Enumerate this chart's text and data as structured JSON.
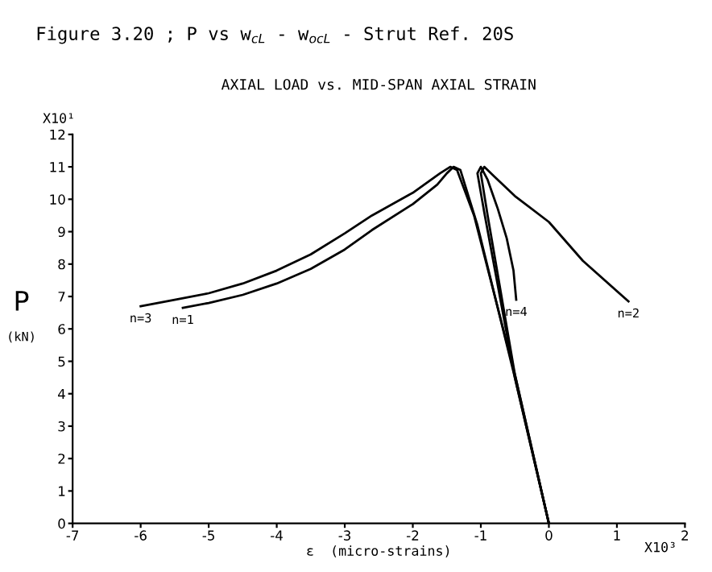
{
  "chart_data": {
    "type": "line",
    "title": "AXIAL LOAD vs. MID-SPAN AXIAL STRAIN",
    "xlabel": "ε  (micro-strains)",
    "ylabel": "P\n(kN)",
    "annotations": [
      "Figure 3.20 ; P vs w$_{cL}$ - w$_{ocL}$ - Strut Ref. 20S",
      "X10¹",
      "X10³"
    ],
    "xlim": [
      -7,
      2
    ],
    "xticks": [
      -7,
      -6,
      -5,
      -4,
      -3,
      -2,
      -1,
      0,
      1,
      2
    ],
    "ylim": [
      0,
      12
    ],
    "yticks": [
      0,
      1,
      2,
      3,
      4,
      5,
      6,
      7,
      8,
      9,
      10,
      11,
      12
    ],
    "grid": false,
    "legend": false,
    "marker": "none",
    "line_style": "solid",
    "series": [
      {
        "name": "n=3",
        "color": "#000000",
        "x": [
          0,
          -0.5,
          -1.1,
          -1.35,
          -1.45,
          -1.6,
          -2,
          -2.6,
          -3,
          -3.5,
          -4,
          -4.5,
          -5,
          -5.5,
          -6
        ],
        "values": [
          0,
          4.6,
          9.5,
          10.9,
          11.0,
          10.8,
          10.2,
          9.5,
          8.95,
          8.3,
          7.8,
          7.4,
          7.1,
          6.9,
          6.7
        ]
      },
      {
        "name": "n=1",
        "color": "#000000",
        "x": [
          0,
          -0.5,
          -1.05,
          -1.3,
          -1.4,
          -1.5,
          -1.64,
          -2,
          -2.6,
          -3,
          -3.5,
          -4,
          -4.5,
          -5,
          -5.38
        ],
        "values": [
          0,
          4.5,
          9.2,
          10.9,
          11.0,
          10.8,
          10.45,
          9.85,
          9.05,
          8.45,
          7.85,
          7.4,
          7.05,
          6.8,
          6.65
        ]
      },
      {
        "name": "n=4",
        "color": "#000000",
        "x": [
          0,
          -0.5,
          -0.95,
          -1.05,
          -1.0,
          -0.9,
          -0.75,
          -0.62,
          -0.52,
          -0.48
        ],
        "values": [
          0,
          4.5,
          9.6,
          10.8,
          11.0,
          10.6,
          9.7,
          8.8,
          7.8,
          6.9
        ]
      },
      {
        "name": "n=2",
        "color": "#000000",
        "x": [
          0,
          -0.5,
          -0.9,
          -1.0,
          -0.95,
          -0.8,
          -0.5,
          0,
          0.5,
          1.17
        ],
        "values": [
          0,
          4.6,
          9.5,
          10.8,
          11.0,
          10.7,
          10.1,
          9.3,
          8.1,
          6.85
        ]
      }
    ]
  }
}
